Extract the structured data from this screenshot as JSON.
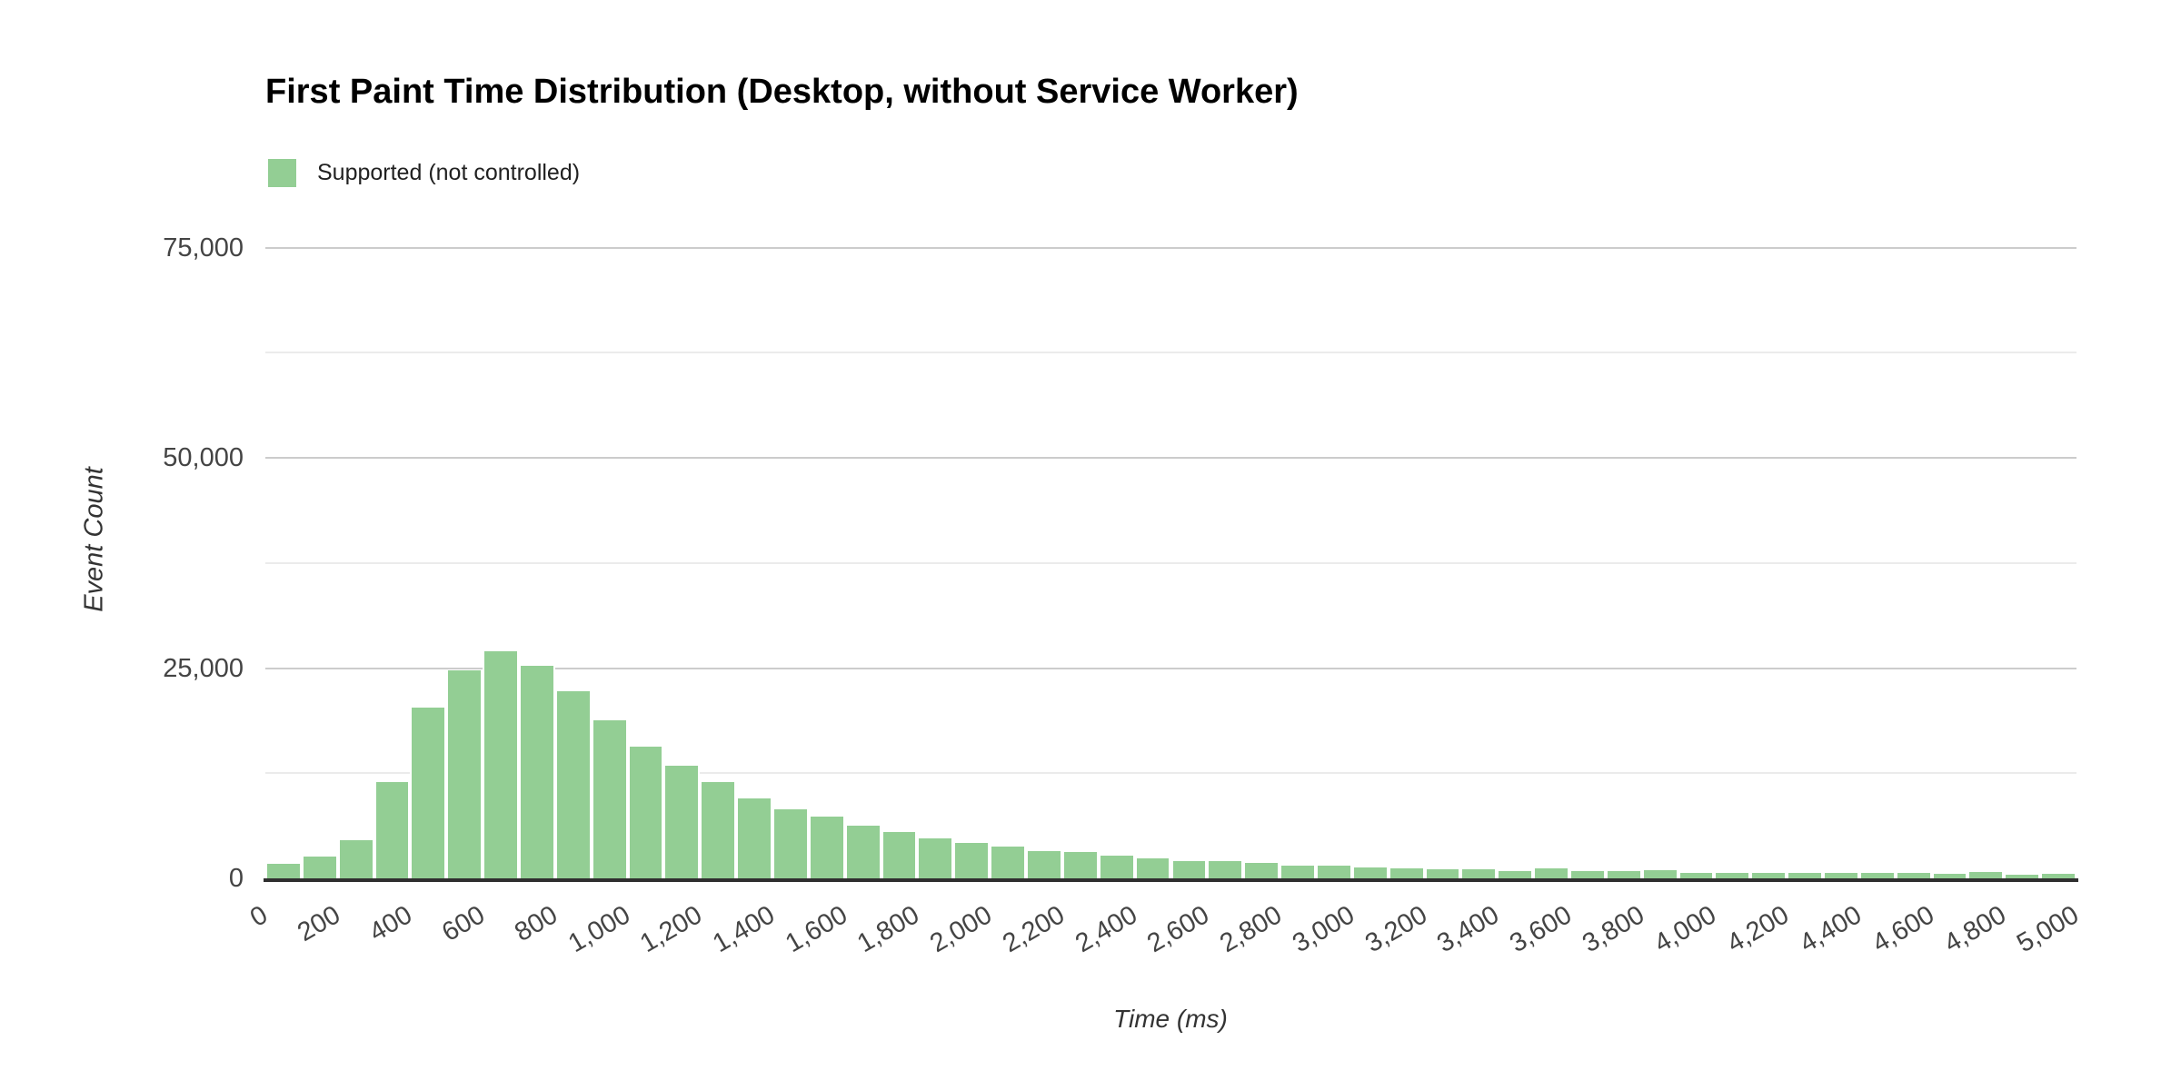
{
  "title": "First Paint Time Distribution (Desktop, without Service Worker)",
  "legend": {
    "label": "Supported (not controlled)",
    "swatch_color": "#93ce94"
  },
  "y_axis": {
    "title": "Event Count",
    "tick_values": [
      0,
      25000,
      50000,
      75000
    ],
    "tick_labels": [
      "0",
      "25,000",
      "50,000",
      "75,000"
    ],
    "minor_tick_values": [
      12500,
      37500,
      62500
    ]
  },
  "x_axis": {
    "title": "Time (ms)",
    "tick_values": [
      0,
      200,
      400,
      600,
      800,
      1000,
      1200,
      1400,
      1600,
      1800,
      2000,
      2200,
      2400,
      2600,
      2800,
      3000,
      3200,
      3400,
      3600,
      3800,
      4000,
      4200,
      4400,
      4600,
      4800,
      5000
    ],
    "tick_labels": [
      "0",
      "200",
      "400",
      "600",
      "800",
      "1,000",
      "1,200",
      "1,400",
      "1,600",
      "1,800",
      "2,000",
      "2,200",
      "2,400",
      "2,600",
      "2,800",
      "3,000",
      "3,200",
      "3,400",
      "3,600",
      "3,800",
      "4,000",
      "4,200",
      "4,400",
      "4,600",
      "4,800",
      "5,000"
    ]
  },
  "colors": {
    "bar": "#93ce94",
    "gridline_major": "#cccccc",
    "gridline_minor": "#ebebeb",
    "baseline": "#2f2f2f",
    "tick_text": "#444444",
    "axis_title_text": "#333333",
    "title_text": "#000000"
  },
  "chart_data": {
    "type": "bar",
    "title": "First Paint Time Distribution (Desktop, without Service Worker)",
    "xlabel": "Time (ms)",
    "ylabel": "Event Count",
    "series_name": "Supported (not controlled)",
    "bin_width_ms": 100,
    "x_range_ms": [
      0,
      5000
    ],
    "ylim": [
      0,
      78500
    ],
    "grid": "on",
    "legend_position": "top-left",
    "bin_start_ms": [
      0,
      100,
      200,
      300,
      400,
      500,
      600,
      700,
      800,
      900,
      1000,
      1100,
      1200,
      1300,
      1400,
      1500,
      1600,
      1700,
      1800,
      1900,
      2000,
      2100,
      2200,
      2300,
      2400,
      2500,
      2600,
      2700,
      2800,
      2900,
      3000,
      3100,
      3200,
      3300,
      3400,
      3500,
      3600,
      3700,
      3800,
      3900,
      4000,
      4100,
      4200,
      4300,
      4400,
      4500,
      4600,
      4700,
      4800,
      4900
    ],
    "values": [
      1700,
      2600,
      4500,
      11400,
      20300,
      24700,
      27000,
      25300,
      22300,
      18800,
      15700,
      13400,
      11500,
      9500,
      8200,
      7300,
      6300,
      5500,
      4700,
      4200,
      3800,
      3200,
      3100,
      2700,
      2400,
      2000,
      2000,
      1800,
      1500,
      1500,
      1300,
      1200,
      1100,
      1100,
      900,
      1200,
      900,
      900,
      1000,
      700,
      700,
      700,
      650,
      650,
      650,
      700,
      500,
      800,
      450,
      550
    ]
  }
}
